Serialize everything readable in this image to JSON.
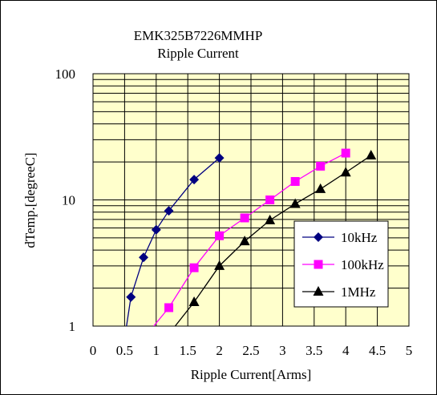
{
  "chart_data": {
    "type": "line",
    "title": "EMK325B7226MMHP",
    "subtitle": "Ripple Current",
    "xlabel": "Ripple Current[Arms]",
    "ylabel": "dTemp.[degreeC]",
    "xlim": [
      0,
      5
    ],
    "ylim": [
      1,
      100
    ],
    "yscale": "log",
    "x_ticks": [
      "0",
      "0.5",
      "1",
      "1.5",
      "2",
      "2.5",
      "3",
      "3.5",
      "4",
      "4.5",
      "5"
    ],
    "y_ticks": [
      "1",
      "10",
      "100"
    ],
    "grid": true,
    "legend_position": "right",
    "series": [
      {
        "name": "10kHz",
        "color": "#000080",
        "marker": "diamond",
        "x": [
          0.53,
          0.6,
          0.8,
          1.0,
          1.2,
          1.6,
          2.0
        ],
        "y": [
          1.0,
          1.7,
          3.5,
          5.8,
          8.2,
          14.5,
          21.5
        ]
      },
      {
        "name": "100kHz",
        "color": "#ff00ff",
        "marker": "square",
        "x": [
          0.96,
          1.2,
          1.6,
          2.0,
          2.4,
          2.8,
          3.2,
          3.6,
          4.0
        ],
        "y": [
          1.0,
          1.4,
          2.9,
          5.2,
          7.2,
          10.0,
          14.0,
          18.5,
          23.5
        ]
      },
      {
        "name": "1MHz",
        "color": "#000000",
        "marker": "triangle",
        "x": [
          1.3,
          1.6,
          2.0,
          2.4,
          2.8,
          3.2,
          3.6,
          4.0,
          4.4
        ],
        "y": [
          1.0,
          1.55,
          3.0,
          4.7,
          6.9,
          9.3,
          12.2,
          16.5,
          22.5
        ]
      }
    ]
  }
}
